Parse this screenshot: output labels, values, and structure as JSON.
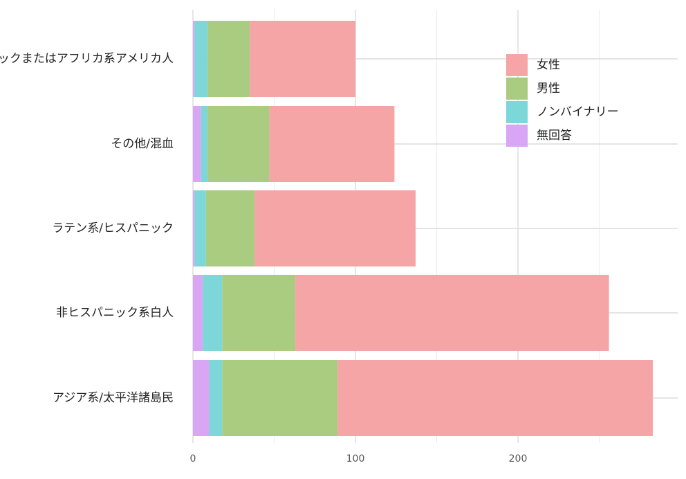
{
  "chart_data": {
    "type": "bar",
    "orientation": "horizontal",
    "stacked": true,
    "title": "",
    "xlabel": "",
    "ylabel": "",
    "categories": [
      "ブラックまたはアフリカ系アメリカ人",
      "その他/混血",
      "ラテン系/ヒスパニック",
      "非ヒスパニック系白人",
      "アジア系/太平洋諸島民"
    ],
    "series": [
      {
        "name": "無回答",
        "color": "#d9a5f5",
        "values": [
          1,
          5,
          1,
          6,
          10
        ]
      },
      {
        "name": "ノンバイナリー",
        "color": "#7dd7d9",
        "values": [
          8,
          4,
          7,
          12,
          8
        ]
      },
      {
        "name": "男性",
        "color": "#a9cc80",
        "values": [
          26,
          38,
          30,
          45,
          71
        ]
      },
      {
        "name": "女性",
        "color": "#f5a5a5",
        "values": [
          65,
          77,
          99,
          193,
          194
        ]
      }
    ],
    "xlim": [
      0,
      290
    ],
    "xticks": [
      0,
      100,
      200
    ],
    "grid": true,
    "legend_position": "top-right"
  }
}
